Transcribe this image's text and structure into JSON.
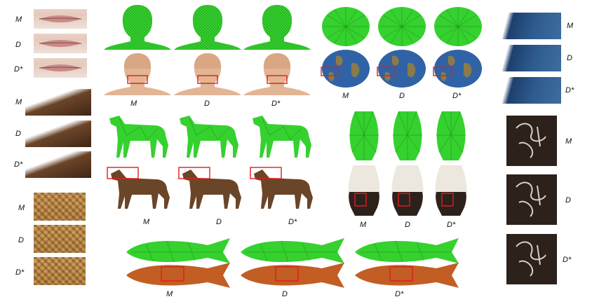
{
  "labels": {
    "m": "M",
    "d": "D",
    "dstar": "D*"
  },
  "colors": {
    "mesh_green": "#35d12f",
    "highlight_red": "#e51b1b",
    "skin": "#e2b595",
    "horse_brown": "#6b4528",
    "fish_orange": "#c25e24",
    "earth_blue": "#2f63a6",
    "vase_white": "#ece8e0"
  },
  "objects": [
    "lips",
    "head",
    "earth",
    "horse",
    "vase",
    "fish"
  ]
}
